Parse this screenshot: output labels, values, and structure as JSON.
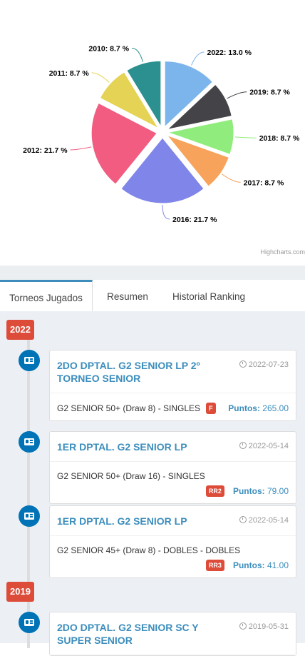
{
  "chart_data": {
    "type": "pie",
    "slices": [
      {
        "label": "2022: 13.0 %",
        "name": "2022",
        "value": 13.0,
        "color": "#7cb5ec"
      },
      {
        "label": "2019: 8.7 %",
        "name": "2019",
        "value": 8.7,
        "color": "#434348"
      },
      {
        "label": "2018: 8.7 %",
        "name": "2018",
        "value": 8.7,
        "color": "#90ed7d"
      },
      {
        "label": "2017: 8.7 %",
        "name": "2017",
        "value": 8.7,
        "color": "#f7a35c"
      },
      {
        "label": "2016: 21.7 %",
        "name": "2016",
        "value": 21.7,
        "color": "#8085e9"
      },
      {
        "label": "2012: 21.7 %",
        "name": "2012",
        "value": 21.7,
        "color": "#f15c80"
      },
      {
        "label": "2011: 8.7 %",
        "name": "2011",
        "value": 8.7,
        "color": "#e4d354"
      },
      {
        "label": "2010: 8.7 %",
        "name": "2010",
        "value": 8.7,
        "color": "#2b908f"
      }
    ]
  },
  "credits": "Highcharts.com",
  "tabs": [
    {
      "label": "Torneos Jugados",
      "active": true
    },
    {
      "label": "Resumen",
      "active": false
    },
    {
      "label": "Historial Ranking",
      "active": false
    }
  ],
  "timeline": {
    "years": [
      "2022",
      "2019"
    ],
    "items": [
      {
        "title": "2DO DPTAL. G2 SENIOR LP 2º TORNEO SENIOR",
        "date": "2022-07-23",
        "category": "G2 SENIOR 50+ (Draw 8) - SINGLES",
        "result": "F",
        "points_label": "Puntos:",
        "points": "265.00"
      },
      {
        "title": "1ER DPTAL. G2 SENIOR LP",
        "date": "2022-05-14",
        "category": "G2 SENIOR 50+ (Draw 16) - SINGLES",
        "result": "RR2",
        "points_label": "Puntos:",
        "points": "79.00"
      },
      {
        "title": "1ER DPTAL. G2 SENIOR LP",
        "date": "2022-05-14",
        "category": "G2 SENIOR 45+ (Draw 8) - DOBLES - DOBLES",
        "result": "RR3",
        "points_label": "Puntos:",
        "points": "41.00"
      },
      {
        "title": "2DO DPTAL. G2 SENIOR SC Y SUPER SENIOR",
        "date": "2019-05-31"
      }
    ]
  }
}
